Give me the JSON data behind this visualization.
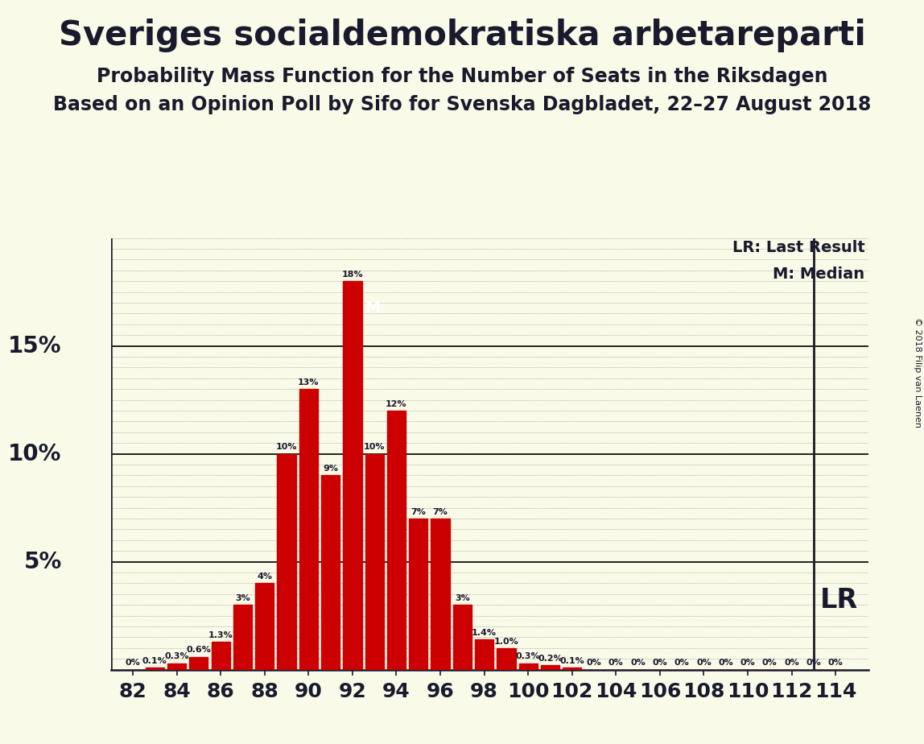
{
  "title": "Sveriges socialdemokratiska arbetareparti",
  "subtitle1": "Probability Mass Function for the Number of Seats in the Riksdagen",
  "subtitle2": "Based on an Opinion Poll by Sifo for Svenska Dagbladet, 22–27 August 2018",
  "copyright": "© 2018 Filip van Laenen",
  "seats": [
    82,
    83,
    84,
    85,
    86,
    87,
    88,
    89,
    90,
    91,
    92,
    93,
    94,
    95,
    96,
    97,
    98,
    99,
    100,
    101,
    102,
    103,
    104,
    105,
    106,
    107,
    108,
    109,
    110,
    111,
    112,
    113,
    114
  ],
  "probabilities": [
    0.0,
    0.1,
    0.3,
    0.6,
    1.3,
    3.0,
    4.0,
    10.0,
    13.0,
    9.0,
    18.0,
    10.0,
    12.0,
    7.0,
    7.0,
    3.0,
    1.4,
    1.0,
    0.3,
    0.2,
    0.1,
    0.0,
    0.0,
    0.0,
    0.0,
    0.0,
    0.0,
    0.0,
    0.0,
    0.0,
    0.0,
    0.0,
    0.0
  ],
  "bar_color": "#cc0000",
  "background_color": "#fafae8",
  "text_color": "#1a1a2e",
  "median_seat": 92,
  "last_result_seat": 113,
  "ylim": [
    0,
    20
  ],
  "bar_labels": [
    "0%",
    "0.1%",
    "0.3%",
    "0.6%",
    "1.3%",
    "3%",
    "4%",
    "10%",
    "13%",
    "9%",
    "18%",
    "10%",
    "12%",
    "7%",
    "7%",
    "3%",
    "1.4%",
    "1.0%",
    "0.3%",
    "0.2%",
    "0.1%",
    "0%",
    "0%",
    "0%",
    "0%",
    "0%",
    "0%",
    "0%",
    "0%",
    "0%",
    "0%",
    "0%",
    "0%"
  ],
  "xtick_labels": [
    "82",
    "84",
    "86",
    "88",
    "90",
    "92",
    "94",
    "96",
    "98",
    "100",
    "102",
    "104",
    "106",
    "108",
    "110",
    "112",
    "114"
  ],
  "xtick_positions": [
    82,
    84,
    86,
    88,
    90,
    92,
    94,
    96,
    98,
    100,
    102,
    104,
    106,
    108,
    110,
    112,
    114
  ],
  "title_fontsize": 30,
  "subtitle_fontsize": 17,
  "ylabel_fontsize": 20,
  "bar_label_fontsize": 8,
  "xtick_fontsize": 18
}
